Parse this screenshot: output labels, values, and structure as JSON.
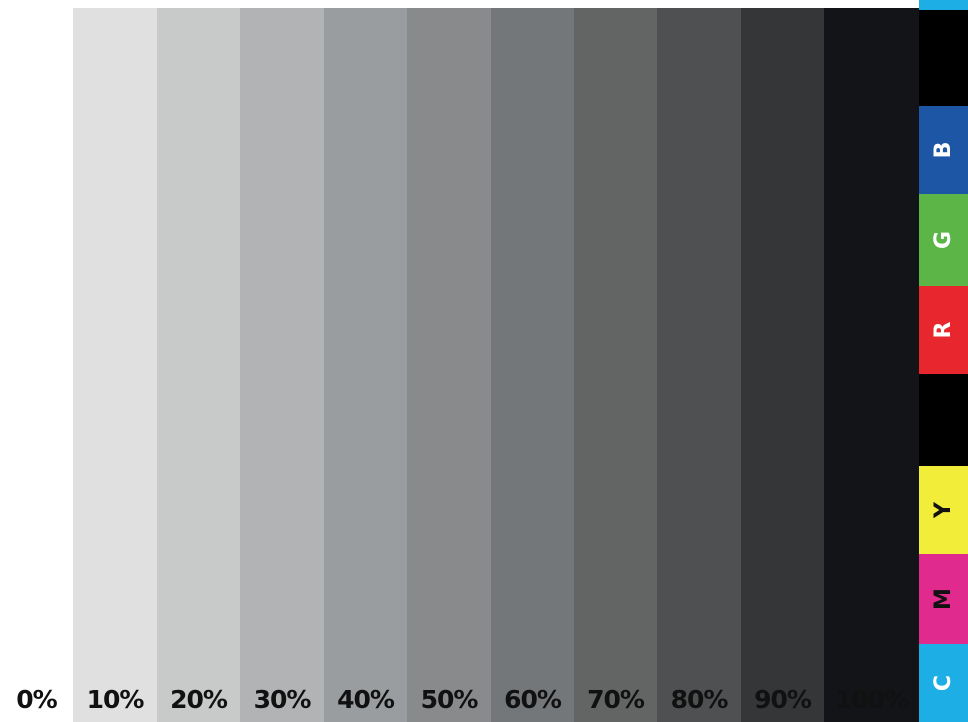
{
  "gray_ramp": [
    {
      "label": "0%",
      "color": "#ffffff"
    },
    {
      "label": "10%",
      "color": "#e0e0e0"
    },
    {
      "label": "20%",
      "color": "#c8c9c9"
    },
    {
      "label": "30%",
      "color": "#b1b3b4"
    },
    {
      "label": "40%",
      "color": "#9a9d9f"
    },
    {
      "label": "50%",
      "color": "#888a8b"
    },
    {
      "label": "60%",
      "color": "#74777a"
    },
    {
      "label": "70%",
      "color": "#636565"
    },
    {
      "label": "80%",
      "color": "#4e5051"
    },
    {
      "label": "90%",
      "color": "#343638"
    },
    {
      "label": "100%",
      "color": "#121417"
    }
  ],
  "color_bar": [
    {
      "letter": "",
      "color": "#1daee6"
    },
    {
      "letter": "",
      "color": "#000000"
    },
    {
      "letter": "B",
      "color": "#1e56a6"
    },
    {
      "letter": "G",
      "color": "#5cb647"
    },
    {
      "letter": "R",
      "color": "#e8262d"
    },
    {
      "letter": "",
      "color": "#000000"
    },
    {
      "letter": "Y",
      "color": "#f1ed38"
    },
    {
      "letter": "M",
      "color": "#e02a8e"
    },
    {
      "letter": "C",
      "color": "#1daee6"
    }
  ]
}
